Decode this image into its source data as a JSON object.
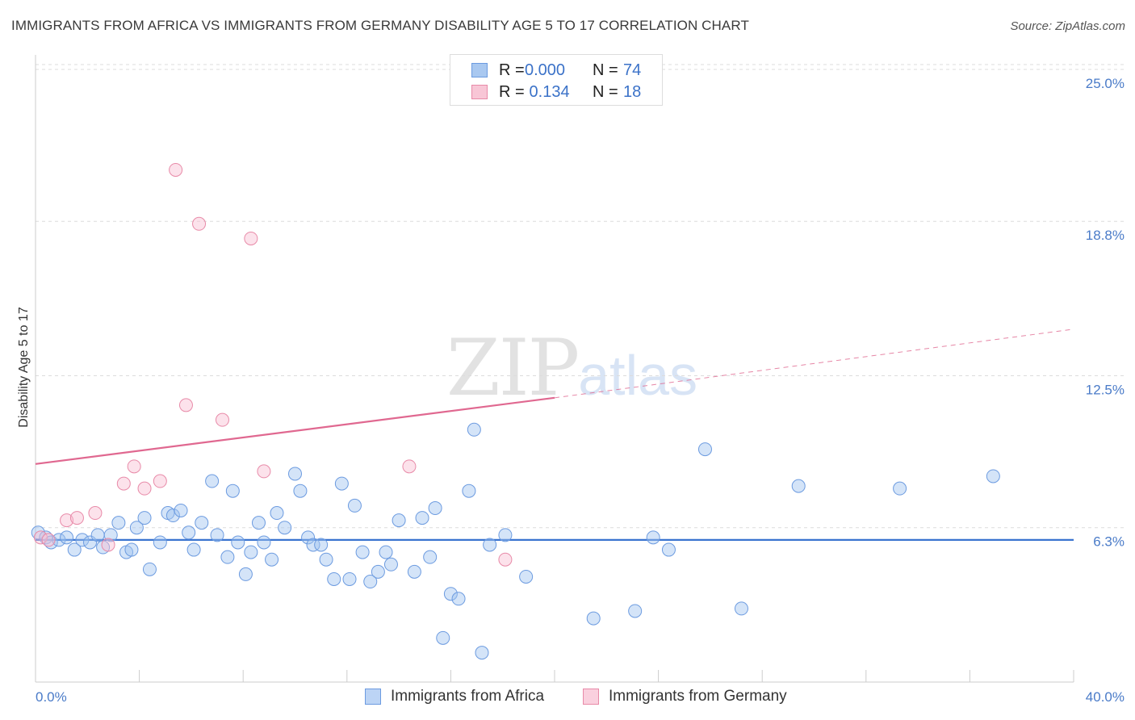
{
  "title": "IMMIGRANTS FROM AFRICA VS IMMIGRANTS FROM GERMANY DISABILITY AGE 5 TO 17 CORRELATION CHART",
  "source": "Source: ZipAtlas.com",
  "watermark": {
    "zip": "ZIP",
    "atlas": "atlas"
  },
  "legend": {
    "rows": [
      {
        "r_label": "R =",
        "r_value": "0.000",
        "n_label": "N =",
        "n_value": "74",
        "color": "#a9c8f0",
        "border": "#6c9be0"
      },
      {
        "r_label": "R =",
        "r_value": " 0.134",
        "n_label": "N =",
        "n_value": "18",
        "color": "#f8c6d6",
        "border": "#e88aa8"
      }
    ]
  },
  "bottom_legend": [
    {
      "label": "Immigrants from Africa",
      "color": "#bcd4f5",
      "border": "#6c9be0"
    },
    {
      "label": "Immigrants from Germany",
      "color": "#fad0de",
      "border": "#e88aa8"
    }
  ],
  "chart_data": {
    "type": "scatter",
    "title": "IMMIGRANTS FROM AFRICA VS IMMIGRANTS FROM GERMANY DISABILITY AGE 5 TO 17 CORRELATION CHART",
    "ylabel": "Disability Age 5 to 17",
    "xlabel": "",
    "xlim": [
      0,
      40
    ],
    "ylim": [
      0,
      25
    ],
    "x_tick_labels": [
      "0.0%",
      "40.0%"
    ],
    "y_ticks": [
      6.3,
      12.5,
      18.8,
      25.0
    ],
    "y_tick_labels": [
      "6.3%",
      "12.5%",
      "18.8%",
      "25.0%"
    ],
    "grid": "horizontal dashed",
    "legend_position": "top-center",
    "series": [
      {
        "name": "Immigrants from Africa",
        "color": "#6c9be0",
        "fill": "rgba(160,195,240,0.45)",
        "trend": {
          "x": [
            0,
            40
          ],
          "y": [
            5.8,
            5.8
          ],
          "color": "#3a74d0"
        },
        "points": [
          [
            0.1,
            6.1
          ],
          [
            0.4,
            5.9
          ],
          [
            0.6,
            5.7
          ],
          [
            0.9,
            5.8
          ],
          [
            1.2,
            5.9
          ],
          [
            1.5,
            5.4
          ],
          [
            1.8,
            5.8
          ],
          [
            2.1,
            5.7
          ],
          [
            2.4,
            6.0
          ],
          [
            2.6,
            5.5
          ],
          [
            2.9,
            6.0
          ],
          [
            3.2,
            6.5
          ],
          [
            3.5,
            5.3
          ],
          [
            3.7,
            5.4
          ],
          [
            3.9,
            6.3
          ],
          [
            4.2,
            6.7
          ],
          [
            4.4,
            4.6
          ],
          [
            4.8,
            5.7
          ],
          [
            5.1,
            6.9
          ],
          [
            5.3,
            6.8
          ],
          [
            5.6,
            7.0
          ],
          [
            5.9,
            6.1
          ],
          [
            6.1,
            5.4
          ],
          [
            6.4,
            6.5
          ],
          [
            6.8,
            8.2
          ],
          [
            7.0,
            6.0
          ],
          [
            7.4,
            5.1
          ],
          [
            7.6,
            7.8
          ],
          [
            7.8,
            5.7
          ],
          [
            8.1,
            4.4
          ],
          [
            8.3,
            5.3
          ],
          [
            8.6,
            6.5
          ],
          [
            8.8,
            5.7
          ],
          [
            9.1,
            5.0
          ],
          [
            9.3,
            6.9
          ],
          [
            9.6,
            6.3
          ],
          [
            10.0,
            8.5
          ],
          [
            10.2,
            7.8
          ],
          [
            10.5,
            5.9
          ],
          [
            10.7,
            5.6
          ],
          [
            11.0,
            5.6
          ],
          [
            11.2,
            5.0
          ],
          [
            11.5,
            4.2
          ],
          [
            11.8,
            8.1
          ],
          [
            12.1,
            4.2
          ],
          [
            12.3,
            7.2
          ],
          [
            12.6,
            5.3
          ],
          [
            12.9,
            4.1
          ],
          [
            13.2,
            4.5
          ],
          [
            13.5,
            5.3
          ],
          [
            13.7,
            4.8
          ],
          [
            14.0,
            6.6
          ],
          [
            14.6,
            4.5
          ],
          [
            14.9,
            6.7
          ],
          [
            15.2,
            5.1
          ],
          [
            15.4,
            7.1
          ],
          [
            15.7,
            1.8
          ],
          [
            16.0,
            3.6
          ],
          [
            16.3,
            3.4
          ],
          [
            16.7,
            7.8
          ],
          [
            16.9,
            10.3
          ],
          [
            17.2,
            1.2
          ],
          [
            17.5,
            5.6
          ],
          [
            18.1,
            6.0
          ],
          [
            18.9,
            4.3
          ],
          [
            21.5,
            2.6
          ],
          [
            23.1,
            2.9
          ],
          [
            23.8,
            5.9
          ],
          [
            24.4,
            5.4
          ],
          [
            25.8,
            9.5
          ],
          [
            27.2,
            3.0
          ],
          [
            29.4,
            8.0
          ],
          [
            33.3,
            7.9
          ],
          [
            36.9,
            8.4
          ]
        ]
      },
      {
        "name": "Immigrants from Germany",
        "color": "#e88aa8",
        "fill": "rgba(248,190,210,0.45)",
        "trend": {
          "x": [
            0,
            20
          ],
          "y": [
            8.9,
            11.6
          ],
          "dashed_x": [
            20,
            40
          ],
          "dashed_y": [
            11.6,
            14.4
          ],
          "color": "#e06890"
        },
        "points": [
          [
            0.2,
            5.9
          ],
          [
            1.2,
            6.6
          ],
          [
            1.6,
            6.7
          ],
          [
            2.3,
            6.9
          ],
          [
            2.8,
            5.6
          ],
          [
            3.4,
            8.1
          ],
          [
            3.8,
            8.8
          ],
          [
            4.2,
            7.9
          ],
          [
            4.8,
            8.2
          ],
          [
            5.4,
            20.9
          ],
          [
            5.8,
            11.3
          ],
          [
            6.3,
            18.7
          ],
          [
            7.2,
            10.7
          ],
          [
            8.3,
            18.1
          ],
          [
            8.8,
            8.6
          ],
          [
            14.4,
            8.8
          ],
          [
            18.1,
            5.0
          ],
          [
            0.5,
            5.8
          ]
        ]
      }
    ]
  }
}
